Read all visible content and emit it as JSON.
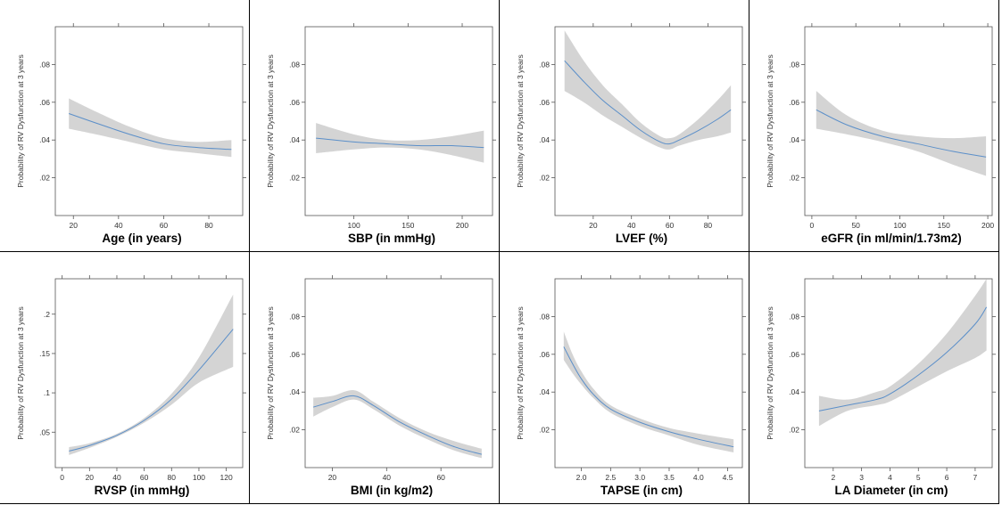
{
  "chart_data": [
    {
      "type": "line",
      "xlabel": "Age (in years)",
      "ylabel": "Probability of RV Dysfunction at 3 years",
      "xlim": [
        12,
        95
      ],
      "ylim": [
        0.0,
        0.1
      ],
      "xticks": [
        20,
        40,
        60,
        80
      ],
      "yticks": [
        0.02,
        0.04,
        0.06,
        0.08
      ],
      "x": [
        18,
        30,
        45,
        60,
        75,
        90
      ],
      "y": [
        0.054,
        0.049,
        0.043,
        0.038,
        0.036,
        0.035
      ],
      "lower": [
        0.046,
        0.043,
        0.039,
        0.035,
        0.033,
        0.031
      ],
      "upper": [
        0.062,
        0.055,
        0.047,
        0.041,
        0.039,
        0.04
      ]
    },
    {
      "type": "line",
      "xlabel": "SBP (in mmHg)",
      "ylabel": "Probability of RV Dysfunction at 3 years",
      "xlim": [
        55,
        228
      ],
      "ylim": [
        0.0,
        0.1
      ],
      "xticks": [
        100,
        150,
        200
      ],
      "yticks": [
        0.02,
        0.04,
        0.06,
        0.08
      ],
      "x": [
        65,
        100,
        130,
        160,
        190,
        220
      ],
      "y": [
        0.041,
        0.039,
        0.038,
        0.037,
        0.037,
        0.036
      ],
      "lower": [
        0.033,
        0.035,
        0.036,
        0.035,
        0.032,
        0.028
      ],
      "upper": [
        0.049,
        0.043,
        0.04,
        0.04,
        0.042,
        0.045
      ]
    },
    {
      "type": "line",
      "xlabel": "LVEF (%)",
      "ylabel": "Probability of RV Dysfunction at 3 years",
      "xlim": [
        0,
        98
      ],
      "ylim": [
        0.0,
        0.1
      ],
      "xticks": [
        20,
        40,
        60,
        80
      ],
      "yticks": [
        0.02,
        0.04,
        0.06,
        0.08
      ],
      "x": [
        5,
        15,
        25,
        35,
        45,
        55,
        60,
        65,
        75,
        85,
        92
      ],
      "y": [
        0.082,
        0.071,
        0.061,
        0.053,
        0.045,
        0.039,
        0.038,
        0.04,
        0.045,
        0.051,
        0.056
      ],
      "lower": [
        0.066,
        0.06,
        0.053,
        0.047,
        0.041,
        0.036,
        0.035,
        0.037,
        0.04,
        0.042,
        0.044
      ],
      "upper": [
        0.098,
        0.082,
        0.069,
        0.059,
        0.049,
        0.042,
        0.041,
        0.043,
        0.051,
        0.061,
        0.069
      ]
    },
    {
      "type": "line",
      "xlabel": "eGFR (in ml/min/1.73m2)",
      "ylabel": "Probability of RV Dysfunction at 3 years",
      "xlim": [
        -8,
        205
      ],
      "ylim": [
        0.0,
        0.1
      ],
      "xticks": [
        0,
        50,
        100,
        150,
        200
      ],
      "yticks": [
        0.02,
        0.04,
        0.06,
        0.08
      ],
      "x": [
        5,
        40,
        80,
        120,
        160,
        198
      ],
      "y": [
        0.056,
        0.048,
        0.042,
        0.038,
        0.034,
        0.031
      ],
      "lower": [
        0.046,
        0.043,
        0.039,
        0.034,
        0.027,
        0.021
      ],
      "upper": [
        0.066,
        0.053,
        0.045,
        0.042,
        0.041,
        0.042
      ]
    },
    {
      "type": "line",
      "xlabel": "RVSP (in mmHg)",
      "ylabel": "Probability of RV Dysfunction at 3 years",
      "xlim": [
        -5,
        132
      ],
      "ylim": [
        0.005,
        0.245
      ],
      "xticks": [
        0,
        20,
        40,
        60,
        80,
        100,
        120
      ],
      "yticks": [
        0.05,
        0.1,
        0.15,
        0.2
      ],
      "x": [
        5,
        20,
        40,
        60,
        80,
        100,
        125
      ],
      "y": [
        0.026,
        0.033,
        0.046,
        0.065,
        0.092,
        0.129,
        0.181
      ],
      "lower": [
        0.021,
        0.03,
        0.044,
        0.062,
        0.085,
        0.113,
        0.133
      ],
      "upper": [
        0.031,
        0.036,
        0.048,
        0.068,
        0.099,
        0.145,
        0.225
      ]
    },
    {
      "type": "line",
      "xlabel": "BMI (in kg/m2)",
      "ylabel": "Probability of RV Dysfunction at 3 years",
      "xlim": [
        10,
        79
      ],
      "ylim": [
        0.0,
        0.1
      ],
      "xticks": [
        20,
        40,
        60
      ],
      "yticks": [
        0.02,
        0.04,
        0.06,
        0.08
      ],
      "x": [
        13,
        20,
        28,
        35,
        45,
        55,
        65,
        75
      ],
      "y": [
        0.032,
        0.035,
        0.038,
        0.033,
        0.024,
        0.017,
        0.011,
        0.007
      ],
      "lower": [
        0.027,
        0.032,
        0.036,
        0.031,
        0.022,
        0.015,
        0.009,
        0.005
      ],
      "upper": [
        0.037,
        0.038,
        0.041,
        0.035,
        0.026,
        0.019,
        0.014,
        0.01
      ]
    },
    {
      "type": "line",
      "xlabel": "TAPSE (in cm)",
      "ylabel": "Probability of RV Dysfunction at 3 years",
      "xlim": [
        1.55,
        4.75
      ],
      "ylim": [
        0.0,
        0.1
      ],
      "xticks": [
        2.0,
        2.5,
        3.0,
        3.5,
        4.0,
        4.5
      ],
      "yticks": [
        0.02,
        0.04,
        0.06,
        0.08
      ],
      "x": [
        1.7,
        1.85,
        2.0,
        2.2,
        2.5,
        3.0,
        3.5,
        4.0,
        4.6
      ],
      "y": [
        0.064,
        0.055,
        0.047,
        0.039,
        0.031,
        0.024,
        0.019,
        0.015,
        0.011
      ],
      "lower": [
        0.057,
        0.05,
        0.044,
        0.037,
        0.029,
        0.022,
        0.017,
        0.012,
        0.008
      ],
      "upper": [
        0.072,
        0.06,
        0.051,
        0.042,
        0.033,
        0.026,
        0.021,
        0.018,
        0.015
      ]
    },
    {
      "type": "line",
      "xlabel": "LA Diameter (in cm)",
      "ylabel": "Probability of RV Dysfunction at 3 years",
      "xlim": [
        1.0,
        7.6
      ],
      "ylim": [
        0.0,
        0.1
      ],
      "xticks": [
        2,
        3,
        4,
        5,
        6,
        7
      ],
      "yticks": [
        0.02,
        0.04,
        0.06,
        0.08
      ],
      "x": [
        1.5,
        2.5,
        3.5,
        4.0,
        5.0,
        6.0,
        7.0,
        7.4
      ],
      "y": [
        0.03,
        0.033,
        0.036,
        0.039,
        0.049,
        0.061,
        0.076,
        0.085
      ],
      "lower": [
        0.022,
        0.03,
        0.033,
        0.035,
        0.043,
        0.051,
        0.058,
        0.062
      ],
      "upper": [
        0.038,
        0.036,
        0.04,
        0.043,
        0.055,
        0.071,
        0.091,
        0.1
      ]
    }
  ]
}
